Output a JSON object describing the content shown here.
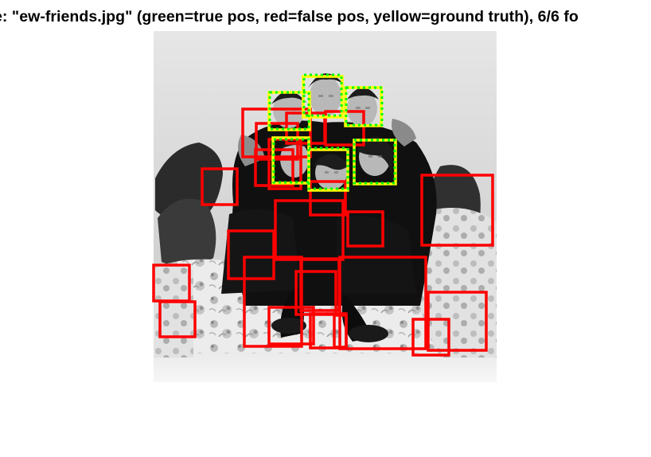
{
  "figure": {
    "title": "e: \"ew-friends.jpg\" (green=true pos, red=false pos, yellow=ground truth), 6/6 fo"
  },
  "legend_colors": {
    "true_positive": "#00ff00",
    "false_positive": "#ff0000",
    "ground_truth": "#ffff00"
  },
  "detections": {
    "ground_truth_count": 6,
    "true_positive_count": 6,
    "false_positive_count": 33
  }
}
